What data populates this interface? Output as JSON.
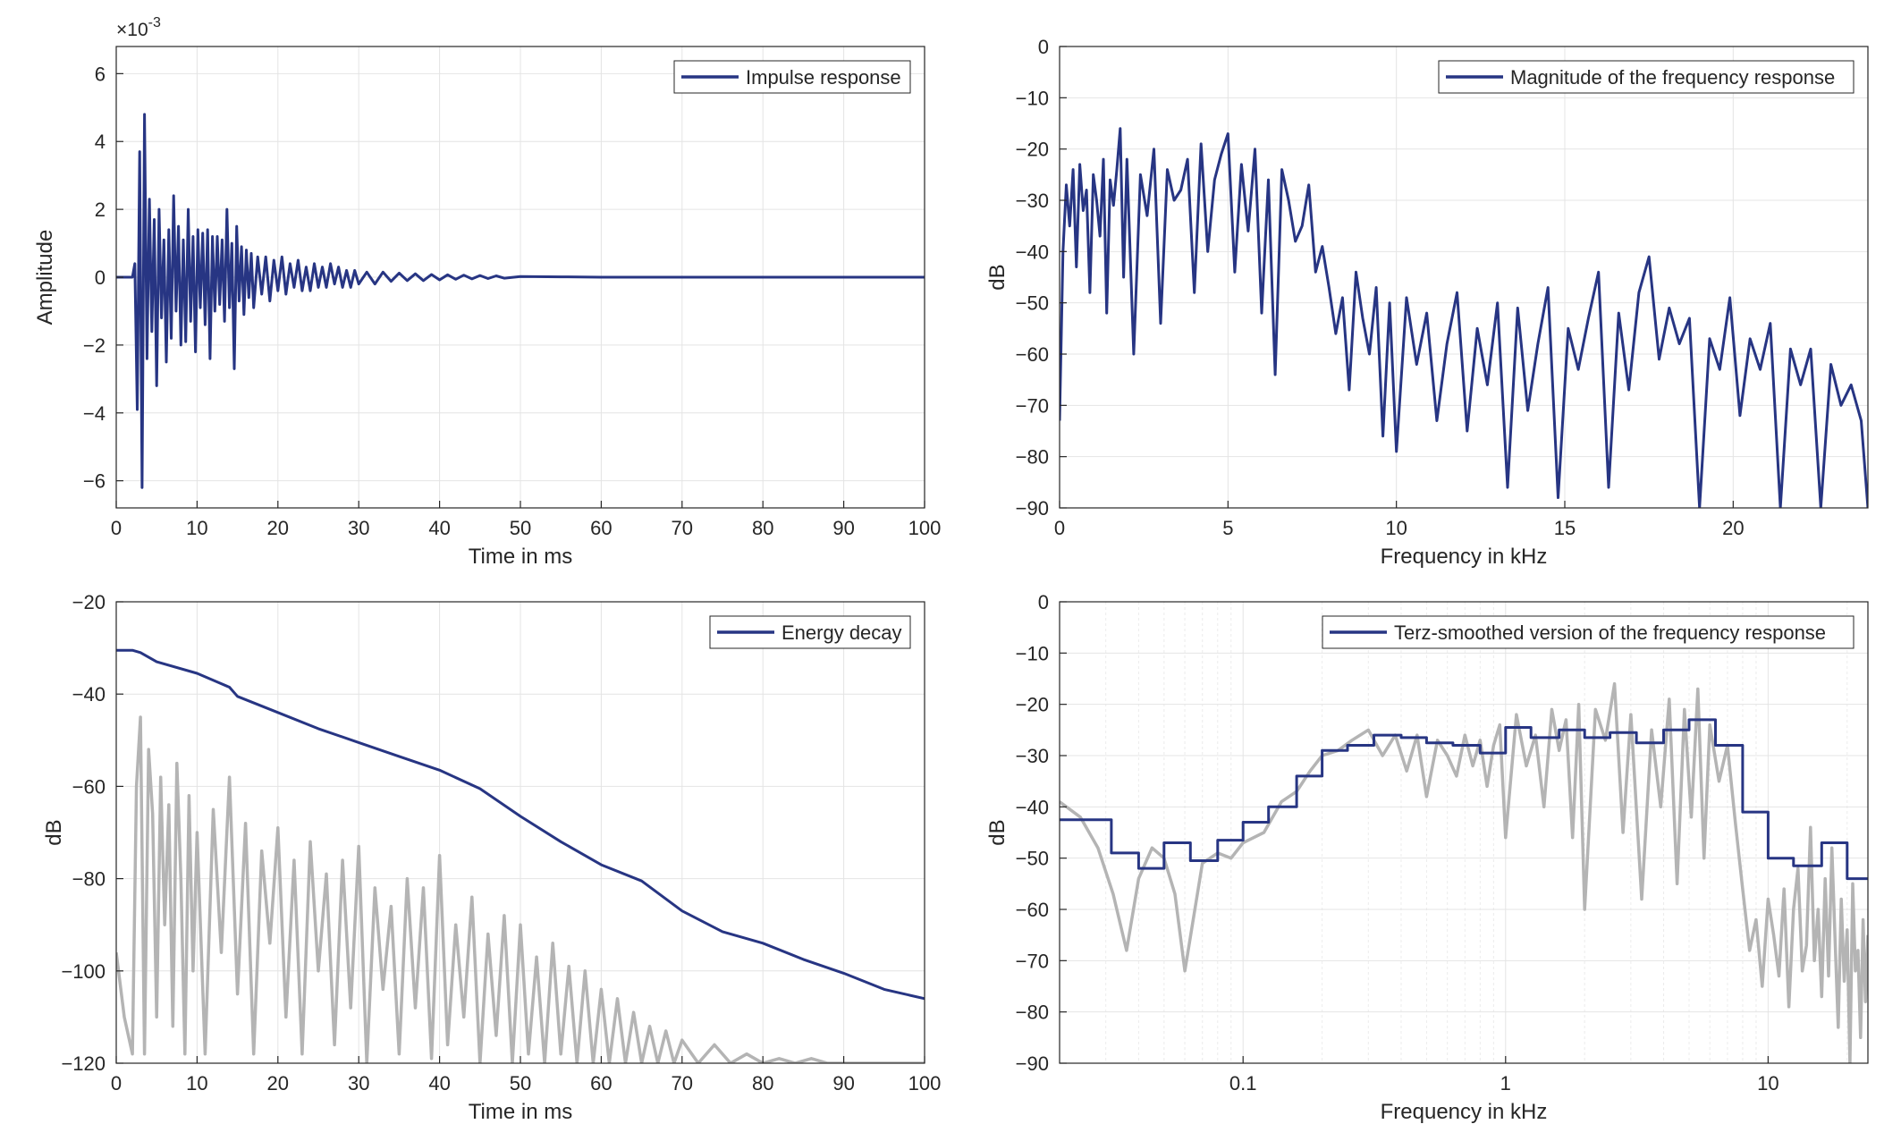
{
  "colors": {
    "series": "#273583",
    "raw": "#b4b4b4",
    "grid": "#e4e4e4",
    "axis": "#262626"
  },
  "chart_data": [
    {
      "id": "impulse",
      "type": "line",
      "xlabel": "Time in ms",
      "ylabel": "Amplitude",
      "exponent_label": "×10",
      "exponent_value": "-3",
      "xlim": [
        0,
        100
      ],
      "ylim": [
        -6.8,
        6.8
      ],
      "x_ticks": [
        0,
        10,
        20,
        30,
        40,
        50,
        60,
        70,
        80,
        90,
        100
      ],
      "y_ticks": [
        -6,
        -4,
        -2,
        0,
        2,
        4,
        6
      ],
      "grid": true,
      "legend_position": "top-right",
      "series": [
        {
          "name": "Impulse response",
          "color": "#273583",
          "x": [
            0,
            1,
            2,
            2.3,
            2.6,
            2.9,
            3.2,
            3.5,
            3.8,
            4.1,
            4.4,
            4.7,
            5.0,
            5.3,
            5.6,
            5.9,
            6.2,
            6.5,
            6.8,
            7.1,
            7.4,
            7.7,
            8.0,
            8.3,
            8.6,
            8.9,
            9.2,
            9.5,
            9.8,
            10.1,
            10.4,
            10.7,
            11.0,
            11.3,
            11.6,
            11.9,
            12.2,
            12.5,
            12.8,
            13.1,
            13.4,
            13.7,
            14.0,
            14.3,
            14.6,
            14.9,
            15.2,
            15.5,
            15.8,
            16.1,
            16.4,
            16.7,
            17.0,
            17.5,
            18.0,
            18.5,
            19.0,
            19.5,
            20.0,
            20.5,
            21.0,
            21.5,
            22.0,
            22.5,
            23.0,
            23.5,
            24.0,
            24.5,
            25.0,
            25.5,
            26.0,
            26.5,
            27.0,
            27.5,
            28.0,
            28.5,
            29.0,
            29.5,
            30.0,
            31,
            32,
            33,
            34,
            35,
            36,
            37,
            38,
            39,
            40,
            41,
            42,
            43,
            44,
            45,
            46,
            47,
            48,
            50,
            55,
            60,
            70,
            80,
            90,
            100
          ],
          "y": [
            0,
            0,
            0,
            0.4,
            -3.9,
            3.7,
            -6.2,
            4.8,
            -2.4,
            2.3,
            -1.6,
            1.7,
            -3.2,
            2.0,
            -1.2,
            1.1,
            -2.5,
            1.4,
            -1.8,
            2.4,
            -1.0,
            1.5,
            -2.0,
            1.1,
            -1.9,
            2.0,
            -1.3,
            1.2,
            -2.2,
            1.4,
            -0.9,
            1.3,
            -1.4,
            1.4,
            -2.4,
            1.2,
            -1.0,
            1.2,
            -0.8,
            1.1,
            -1.3,
            2.0,
            -0.9,
            1.0,
            -2.7,
            1.5,
            -0.7,
            0.9,
            -1.1,
            0.8,
            -0.6,
            0.7,
            -0.9,
            0.6,
            -0.5,
            0.6,
            -0.7,
            0.5,
            -0.4,
            0.6,
            -0.5,
            0.4,
            -0.3,
            0.5,
            -0.4,
            0.3,
            -0.4,
            0.4,
            -0.3,
            0.3,
            -0.3,
            0.4,
            -0.2,
            0.3,
            -0.3,
            0.2,
            -0.3,
            0.2,
            -0.2,
            0.15,
            -0.2,
            0.15,
            -0.12,
            0.12,
            -0.1,
            0.1,
            -0.1,
            0.08,
            -0.08,
            0.07,
            -0.06,
            0.06,
            -0.05,
            0.05,
            -0.04,
            0.04,
            -0.03,
            0.02,
            0.01,
            0,
            0,
            0,
            0,
            0
          ]
        }
      ]
    },
    {
      "id": "magnitude",
      "type": "line",
      "xlabel": "Frequency in kHz",
      "ylabel": "dB",
      "xlim": [
        0,
        24
      ],
      "ylim": [
        -90,
        0
      ],
      "x_ticks": [
        0,
        5,
        10,
        15,
        20
      ],
      "y_ticks": [
        0,
        -10,
        -20,
        -30,
        -40,
        -50,
        -60,
        -70,
        -80,
        -90
      ],
      "grid": true,
      "legend_position": "top-right",
      "series": [
        {
          "name": "Magnitude of the frequency response",
          "color": "#273583",
          "x": [
            0,
            0.1,
            0.2,
            0.3,
            0.4,
            0.5,
            0.6,
            0.7,
            0.8,
            0.9,
            1.0,
            1.1,
            1.2,
            1.3,
            1.4,
            1.5,
            1.6,
            1.7,
            1.8,
            1.9,
            2.0,
            2.2,
            2.4,
            2.6,
            2.8,
            3.0,
            3.2,
            3.4,
            3.6,
            3.8,
            4.0,
            4.2,
            4.4,
            4.6,
            4.8,
            5.0,
            5.2,
            5.4,
            5.6,
            5.8,
            6.0,
            6.2,
            6.4,
            6.6,
            6.8,
            7.0,
            7.2,
            7.4,
            7.6,
            7.8,
            8.0,
            8.2,
            8.4,
            8.6,
            8.8,
            9.0,
            9.2,
            9.4,
            9.6,
            9.8,
            10.0,
            10.3,
            10.6,
            10.9,
            11.2,
            11.5,
            11.8,
            12.1,
            12.4,
            12.7,
            13.0,
            13.3,
            13.6,
            13.9,
            14.2,
            14.5,
            14.8,
            15.1,
            15.4,
            15.7,
            16.0,
            16.3,
            16.6,
            16.9,
            17.2,
            17.5,
            17.8,
            18.1,
            18.4,
            18.7,
            19.0,
            19.3,
            19.6,
            19.9,
            20.2,
            20.5,
            20.8,
            21.1,
            21.4,
            21.7,
            22.0,
            22.3,
            22.6,
            22.9,
            23.2,
            23.5,
            23.8,
            24.0
          ],
          "y": [
            -73,
            -40,
            -27,
            -35,
            -24,
            -43,
            -23,
            -32,
            -28,
            -48,
            -25,
            -30,
            -37,
            -22,
            -52,
            -26,
            -31,
            -24,
            -16,
            -45,
            -22,
            -60,
            -25,
            -33,
            -20,
            -54,
            -24,
            -30,
            -28,
            -22,
            -48,
            -19,
            -40,
            -26,
            -21,
            -17,
            -44,
            -23,
            -36,
            -20,
            -52,
            -26,
            -64,
            -24,
            -30,
            -38,
            -35,
            -27,
            -44,
            -39,
            -47,
            -56,
            -49,
            -67,
            -44,
            -53,
            -60,
            -47,
            -76,
            -50,
            -79,
            -49,
            -62,
            -52,
            -73,
            -58,
            -48,
            -75,
            -55,
            -66,
            -50,
            -86,
            -51,
            -71,
            -58,
            -47,
            -88,
            -55,
            -63,
            -53,
            -44,
            -86,
            -52,
            -67,
            -48,
            -41,
            -61,
            -51,
            -58,
            -53,
            -90,
            -57,
            -63,
            -49,
            -72,
            -57,
            -63,
            -54,
            -90,
            -59,
            -66,
            -59,
            -90,
            -62,
            -70,
            -66,
            -73,
            -90
          ]
        }
      ]
    },
    {
      "id": "decay",
      "type": "line",
      "xlabel": "Time in ms",
      "ylabel": "dB",
      "xlim": [
        0,
        100
      ],
      "ylim": [
        -120,
        -20
      ],
      "x_ticks": [
        0,
        10,
        20,
        30,
        40,
        50,
        60,
        70,
        80,
        90,
        100
      ],
      "y_ticks": [
        -20,
        -40,
        -60,
        -80,
        -100,
        -120
      ],
      "grid": true,
      "legend_position": "top-right",
      "series": [
        {
          "name": "Energy decay",
          "color": "#273583",
          "x": [
            0,
            2,
            3,
            5,
            10,
            14,
            15,
            20,
            25,
            30,
            35,
            40,
            45,
            50,
            55,
            60,
            65,
            70,
            75,
            80,
            85,
            90,
            95,
            100
          ],
          "y": [
            -30.5,
            -30.5,
            -31,
            -33,
            -35.5,
            -38.5,
            -40.5,
            -44,
            -47.5,
            -50.5,
            -53.5,
            -56.5,
            -60.5,
            -66.5,
            -72,
            -77,
            -80.5,
            -87,
            -91.5,
            -94,
            -97.5,
            -100.5,
            -104,
            -106
          ]
        },
        {
          "color": "#b4b4b4",
          "x": [
            0,
            1,
            2,
            2.5,
            3,
            3.5,
            4,
            4.5,
            5,
            5.5,
            6,
            6.5,
            7,
            7.5,
            8,
            8.5,
            9,
            9.5,
            10,
            11,
            12,
            13,
            14,
            15,
            16,
            17,
            18,
            19,
            20,
            21,
            22,
            23,
            24,
            25,
            26,
            27,
            28,
            29,
            30,
            31,
            32,
            33,
            34,
            35,
            36,
            37,
            38,
            39,
            40,
            41,
            42,
            43,
            44,
            45,
            46,
            47,
            48,
            49,
            50,
            51,
            52,
            53,
            54,
            55,
            56,
            57,
            58,
            59,
            60,
            61,
            62,
            63,
            64,
            65,
            66,
            67,
            68,
            69,
            70,
            72,
            74,
            76,
            78,
            80,
            82,
            84,
            86,
            88,
            90,
            92,
            94,
            96,
            98,
            100
          ],
          "y": [
            -96,
            -110,
            -118,
            -60,
            -45,
            -118,
            -52,
            -66,
            -110,
            -58,
            -90,
            -64,
            -112,
            -55,
            -80,
            -118,
            -62,
            -100,
            -70,
            -118,
            -65,
            -96,
            -58,
            -105,
            -68,
            -118,
            -74,
            -94,
            -69,
            -110,
            -76,
            -118,
            -72,
            -100,
            -79,
            -116,
            -76,
            -108,
            -73,
            -120,
            -82,
            -104,
            -86,
            -118,
            -80,
            -108,
            -82,
            -119,
            -75,
            -116,
            -90,
            -110,
            -84,
            -120,
            -92,
            -114,
            -88,
            -120,
            -90,
            -118,
            -97,
            -120,
            -94,
            -118,
            -99,
            -120,
            -100,
            -120,
            -104,
            -120,
            -106,
            -120,
            -109,
            -120,
            -112,
            -120,
            -113,
            -120,
            -115,
            -120,
            -116,
            -120,
            -118,
            -120,
            -119,
            -120,
            -119,
            -120,
            -120,
            -120,
            -120,
            -120,
            -120,
            -120
          ]
        }
      ]
    },
    {
      "id": "terz",
      "type": "line",
      "xlabel": "Frequency in kHz",
      "ylabel": "dB",
      "x_scale": "log",
      "xlim": [
        0.02,
        24
      ],
      "ylim": [
        -90,
        0
      ],
      "x_ticks": [
        0.1,
        1,
        10
      ],
      "x_tick_labels": [
        "0.1",
        "1",
        "10"
      ],
      "y_ticks": [
        0,
        -10,
        -20,
        -30,
        -40,
        -50,
        -60,
        -70,
        -80,
        -90
      ],
      "grid": true,
      "legend_position": "top-right",
      "series": [
        {
          "name": "Terz-smoothed version of the frequency response",
          "color": "#273583",
          "step": true,
          "x": [
            0.02,
            0.0315,
            0.04,
            0.05,
            0.063,
            0.08,
            0.1,
            0.125,
            0.16,
            0.2,
            0.25,
            0.315,
            0.4,
            0.5,
            0.63,
            0.8,
            1.0,
            1.25,
            1.6,
            2.0,
            2.5,
            3.15,
            4.0,
            5.0,
            6.3,
            8.0,
            10.0,
            12.5,
            16.0,
            20.0,
            24.0
          ],
          "y": [
            -42.5,
            -49,
            -52,
            -47,
            -50.5,
            -46.5,
            -43,
            -40,
            -34,
            -29,
            -28,
            -26,
            -26.5,
            -27.5,
            -28,
            -29.5,
            -24.5,
            -26.5,
            -25,
            -26.5,
            -25.5,
            -27.5,
            -25,
            -23,
            -28,
            -41,
            -50,
            -51.5,
            -47,
            -54,
            -54
          ]
        },
        {
          "color": "#b4b4b4",
          "x": [
            0.02,
            0.024,
            0.028,
            0.032,
            0.036,
            0.04,
            0.045,
            0.05,
            0.055,
            0.06,
            0.07,
            0.08,
            0.09,
            0.1,
            0.12,
            0.14,
            0.16,
            0.18,
            0.2,
            0.23,
            0.26,
            0.3,
            0.34,
            0.38,
            0.42,
            0.46,
            0.5,
            0.55,
            0.6,
            0.65,
            0.7,
            0.75,
            0.8,
            0.85,
            0.9,
            0.95,
            1.0,
            1.1,
            1.2,
            1.3,
            1.4,
            1.5,
            1.6,
            1.7,
            1.8,
            1.9,
            2.0,
            2.2,
            2.4,
            2.6,
            2.8,
            3.0,
            3.3,
            3.6,
            3.9,
            4.2,
            4.5,
            4.8,
            5.1,
            5.4,
            5.7,
            6.0,
            6.5,
            7.0,
            7.5,
            8.0,
            8.5,
            9.0,
            9.5,
            10,
            10.5,
            11,
            11.5,
            12,
            12.5,
            13,
            13.5,
            14,
            14.5,
            15,
            15.5,
            16,
            16.5,
            17,
            17.5,
            18,
            18.5,
            19,
            19.5,
            20,
            20.5,
            21,
            21.5,
            22,
            22.5,
            23,
            23.5,
            24
          ],
          "y": [
            -39,
            -42,
            -48,
            -57,
            -68,
            -54,
            -48,
            -50,
            -57,
            -72,
            -51,
            -49,
            -50,
            -47,
            -45,
            -39,
            -37,
            -33,
            -30,
            -29,
            -27,
            -25,
            -30,
            -26,
            -33,
            -26,
            -38,
            -27,
            -30,
            -34,
            -26,
            -32,
            -27,
            -36,
            -28,
            -24,
            -46,
            -22,
            -32,
            -26,
            -40,
            -21,
            -29,
            -23,
            -46,
            -20,
            -60,
            -21,
            -27,
            -16,
            -45,
            -22,
            -58,
            -25,
            -40,
            -19,
            -55,
            -21,
            -42,
            -17,
            -50,
            -24,
            -35,
            -28,
            -43,
            -56,
            -68,
            -62,
            -75,
            -58,
            -65,
            -73,
            -56,
            -79,
            -60,
            -52,
            -72,
            -67,
            -44,
            -70,
            -60,
            -77,
            -54,
            -73,
            -48,
            -66,
            -83,
            -58,
            -74,
            -64,
            -90,
            -55,
            -72,
            -68,
            -85,
            -62,
            -78,
            -65
          ]
        }
      ]
    }
  ]
}
